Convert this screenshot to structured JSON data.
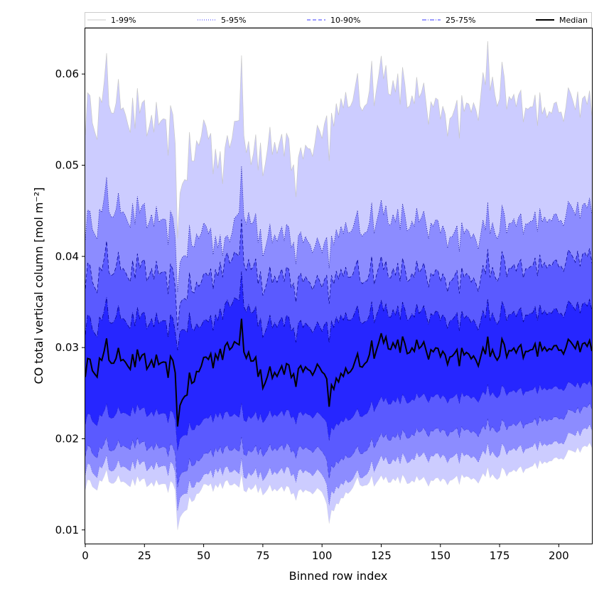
{
  "chart_data": {
    "type": "area",
    "title": "",
    "xlabel": "Binned row index",
    "ylabel": "CO total vertical column [mol m⁻²]",
    "xlim": [
      0,
      214
    ],
    "ylim": [
      0.0085,
      0.065
    ],
    "xticks": [
      0,
      25,
      50,
      75,
      100,
      125,
      150,
      175,
      200
    ],
    "yticks": [
      0.01,
      0.02,
      0.03,
      0.04,
      0.05,
      0.06
    ],
    "ytick_labels": [
      "0.01",
      "0.02",
      "0.03",
      "0.04",
      "0.05",
      "0.06"
    ],
    "grid": false,
    "legend_position": "top",
    "n_points": 215,
    "series": [
      {
        "name": "1-99%",
        "kind": "band",
        "color": "#ccccff",
        "line_color": "#c8c8c8",
        "line_style": "solid",
        "upper_profile": [
          [
            0,
            0.055
          ],
          [
            10,
            0.0575
          ],
          [
            25,
            0.0552
          ],
          [
            38,
            0.053
          ],
          [
            39,
            0.047
          ],
          [
            50,
            0.054
          ],
          [
            58,
            0.0505
          ],
          [
            66,
            0.057
          ],
          [
            70,
            0.0515
          ],
          [
            80,
            0.052
          ],
          [
            90,
            0.0505
          ],
          [
            100,
            0.0545
          ],
          [
            110,
            0.0565
          ],
          [
            125,
            0.0595
          ],
          [
            140,
            0.057
          ],
          [
            150,
            0.0555
          ],
          [
            160,
            0.0562
          ],
          [
            170,
            0.0595
          ],
          [
            180,
            0.057
          ],
          [
            195,
            0.0555
          ],
          [
            205,
            0.0565
          ],
          [
            214,
            0.0575
          ]
        ],
        "upper_amplitude": 0.0028,
        "lower_profile": [
          [
            0,
            0.0148
          ],
          [
            10,
            0.0155
          ],
          [
            25,
            0.0152
          ],
          [
            38,
            0.0145
          ],
          [
            39,
            0.0112
          ],
          [
            50,
            0.0148
          ],
          [
            60,
            0.0152
          ],
          [
            75,
            0.0145
          ],
          [
            90,
            0.0142
          ],
          [
            100,
            0.0145
          ],
          [
            103,
            0.0118
          ],
          [
            115,
            0.0152
          ],
          [
            130,
            0.0155
          ],
          [
            145,
            0.0152
          ],
          [
            160,
            0.0158
          ],
          [
            175,
            0.016
          ],
          [
            190,
            0.017
          ],
          [
            200,
            0.0178
          ],
          [
            214,
            0.0195
          ]
        ],
        "lower_amplitude": 0.0011
      },
      {
        "name": "5-95%",
        "kind": "band",
        "color": "#8c8cff",
        "line_color": "#00008b",
        "line_style": "dotted",
        "upper_profile": [
          [
            0,
            0.043
          ],
          [
            10,
            0.0455
          ],
          [
            25,
            0.0445
          ],
          [
            38,
            0.0425
          ],
          [
            39,
            0.0395
          ],
          [
            50,
            0.043
          ],
          [
            60,
            0.0415
          ],
          [
            66,
            0.0465
          ],
          [
            75,
            0.042
          ],
          [
            90,
            0.042
          ],
          [
            100,
            0.0415
          ],
          [
            125,
            0.0445
          ],
          [
            140,
            0.0435
          ],
          [
            155,
            0.0425
          ],
          [
            165,
            0.043
          ],
          [
            180,
            0.0435
          ],
          [
            200,
            0.044
          ],
          [
            214,
            0.046
          ]
        ],
        "upper_amplitude": 0.0019,
        "lower_profile": [
          [
            0,
            0.0165
          ],
          [
            20,
            0.0172
          ],
          [
            38,
            0.0165
          ],
          [
            39,
            0.0135
          ],
          [
            55,
            0.0168
          ],
          [
            75,
            0.0162
          ],
          [
            100,
            0.0165
          ],
          [
            103,
            0.014
          ],
          [
            125,
            0.0175
          ],
          [
            150,
            0.018
          ],
          [
            175,
            0.0185
          ],
          [
            200,
            0.0195
          ],
          [
            214,
            0.0215
          ]
        ],
        "lower_amplitude": 0.0013
      },
      {
        "name": "10-90%",
        "kind": "band",
        "color": "#5a5aff",
        "line_color": "#00008b",
        "line_style": "dashed",
        "upper_profile": [
          [
            0,
            0.0375
          ],
          [
            12,
            0.039
          ],
          [
            25,
            0.0385
          ],
          [
            38,
            0.037
          ],
          [
            39,
            0.035
          ],
          [
            50,
            0.0375
          ],
          [
            66,
            0.041
          ],
          [
            75,
            0.0375
          ],
          [
            100,
            0.0375
          ],
          [
            125,
            0.0385
          ],
          [
            150,
            0.0375
          ],
          [
            175,
            0.0385
          ],
          [
            200,
            0.039
          ],
          [
            214,
            0.0405
          ]
        ],
        "upper_amplitude": 0.0017,
        "lower_profile": [
          [
            0,
            0.0185
          ],
          [
            20,
            0.0195
          ],
          [
            38,
            0.0185
          ],
          [
            39,
            0.016
          ],
          [
            55,
            0.019
          ],
          [
            75,
            0.0188
          ],
          [
            100,
            0.019
          ],
          [
            103,
            0.0168
          ],
          [
            125,
            0.02
          ],
          [
            150,
            0.0208
          ],
          [
            175,
            0.0212
          ],
          [
            200,
            0.0222
          ],
          [
            214,
            0.0238
          ]
        ],
        "lower_amplitude": 0.0012
      },
      {
        "name": "25-75%",
        "kind": "band",
        "color": "#2626ff",
        "line_color": "#00008b",
        "line_style": "dashdot",
        "upper_profile": [
          [
            0,
            0.0322
          ],
          [
            12,
            0.0335
          ],
          [
            25,
            0.033
          ],
          [
            38,
            0.032
          ],
          [
            50,
            0.0325
          ],
          [
            66,
            0.036
          ],
          [
            75,
            0.0325
          ],
          [
            100,
            0.0325
          ],
          [
            125,
            0.034
          ],
          [
            150,
            0.0332
          ],
          [
            175,
            0.0335
          ],
          [
            200,
            0.0338
          ],
          [
            214,
            0.035
          ]
        ],
        "upper_amplitude": 0.0013,
        "lower_profile": [
          [
            0,
            0.022
          ],
          [
            20,
            0.0232
          ],
          [
            38,
            0.0222
          ],
          [
            39,
            0.02
          ],
          [
            55,
            0.0228
          ],
          [
            75,
            0.0225
          ],
          [
            100,
            0.0228
          ],
          [
            103,
            0.021
          ],
          [
            125,
            0.024
          ],
          [
            150,
            0.0245
          ],
          [
            175,
            0.025
          ],
          [
            200,
            0.0255
          ],
          [
            214,
            0.0262
          ]
        ],
        "lower_amplitude": 0.0012
      },
      {
        "name": "Median",
        "kind": "line",
        "color": "#000000",
        "line_style": "solid",
        "profile": [
          [
            0,
            0.0275
          ],
          [
            10,
            0.029
          ],
          [
            25,
            0.0285
          ],
          [
            38,
            0.0275
          ],
          [
            39,
            0.0235
          ],
          [
            50,
            0.0285
          ],
          [
            66,
            0.031
          ],
          [
            75,
            0.0268
          ],
          [
            100,
            0.028
          ],
          [
            103,
            0.0255
          ],
          [
            125,
            0.0305
          ],
          [
            150,
            0.0292
          ],
          [
            175,
            0.0295
          ],
          [
            200,
            0.0298
          ],
          [
            214,
            0.0305
          ]
        ],
        "amplitude": 0.0012
      }
    ]
  }
}
